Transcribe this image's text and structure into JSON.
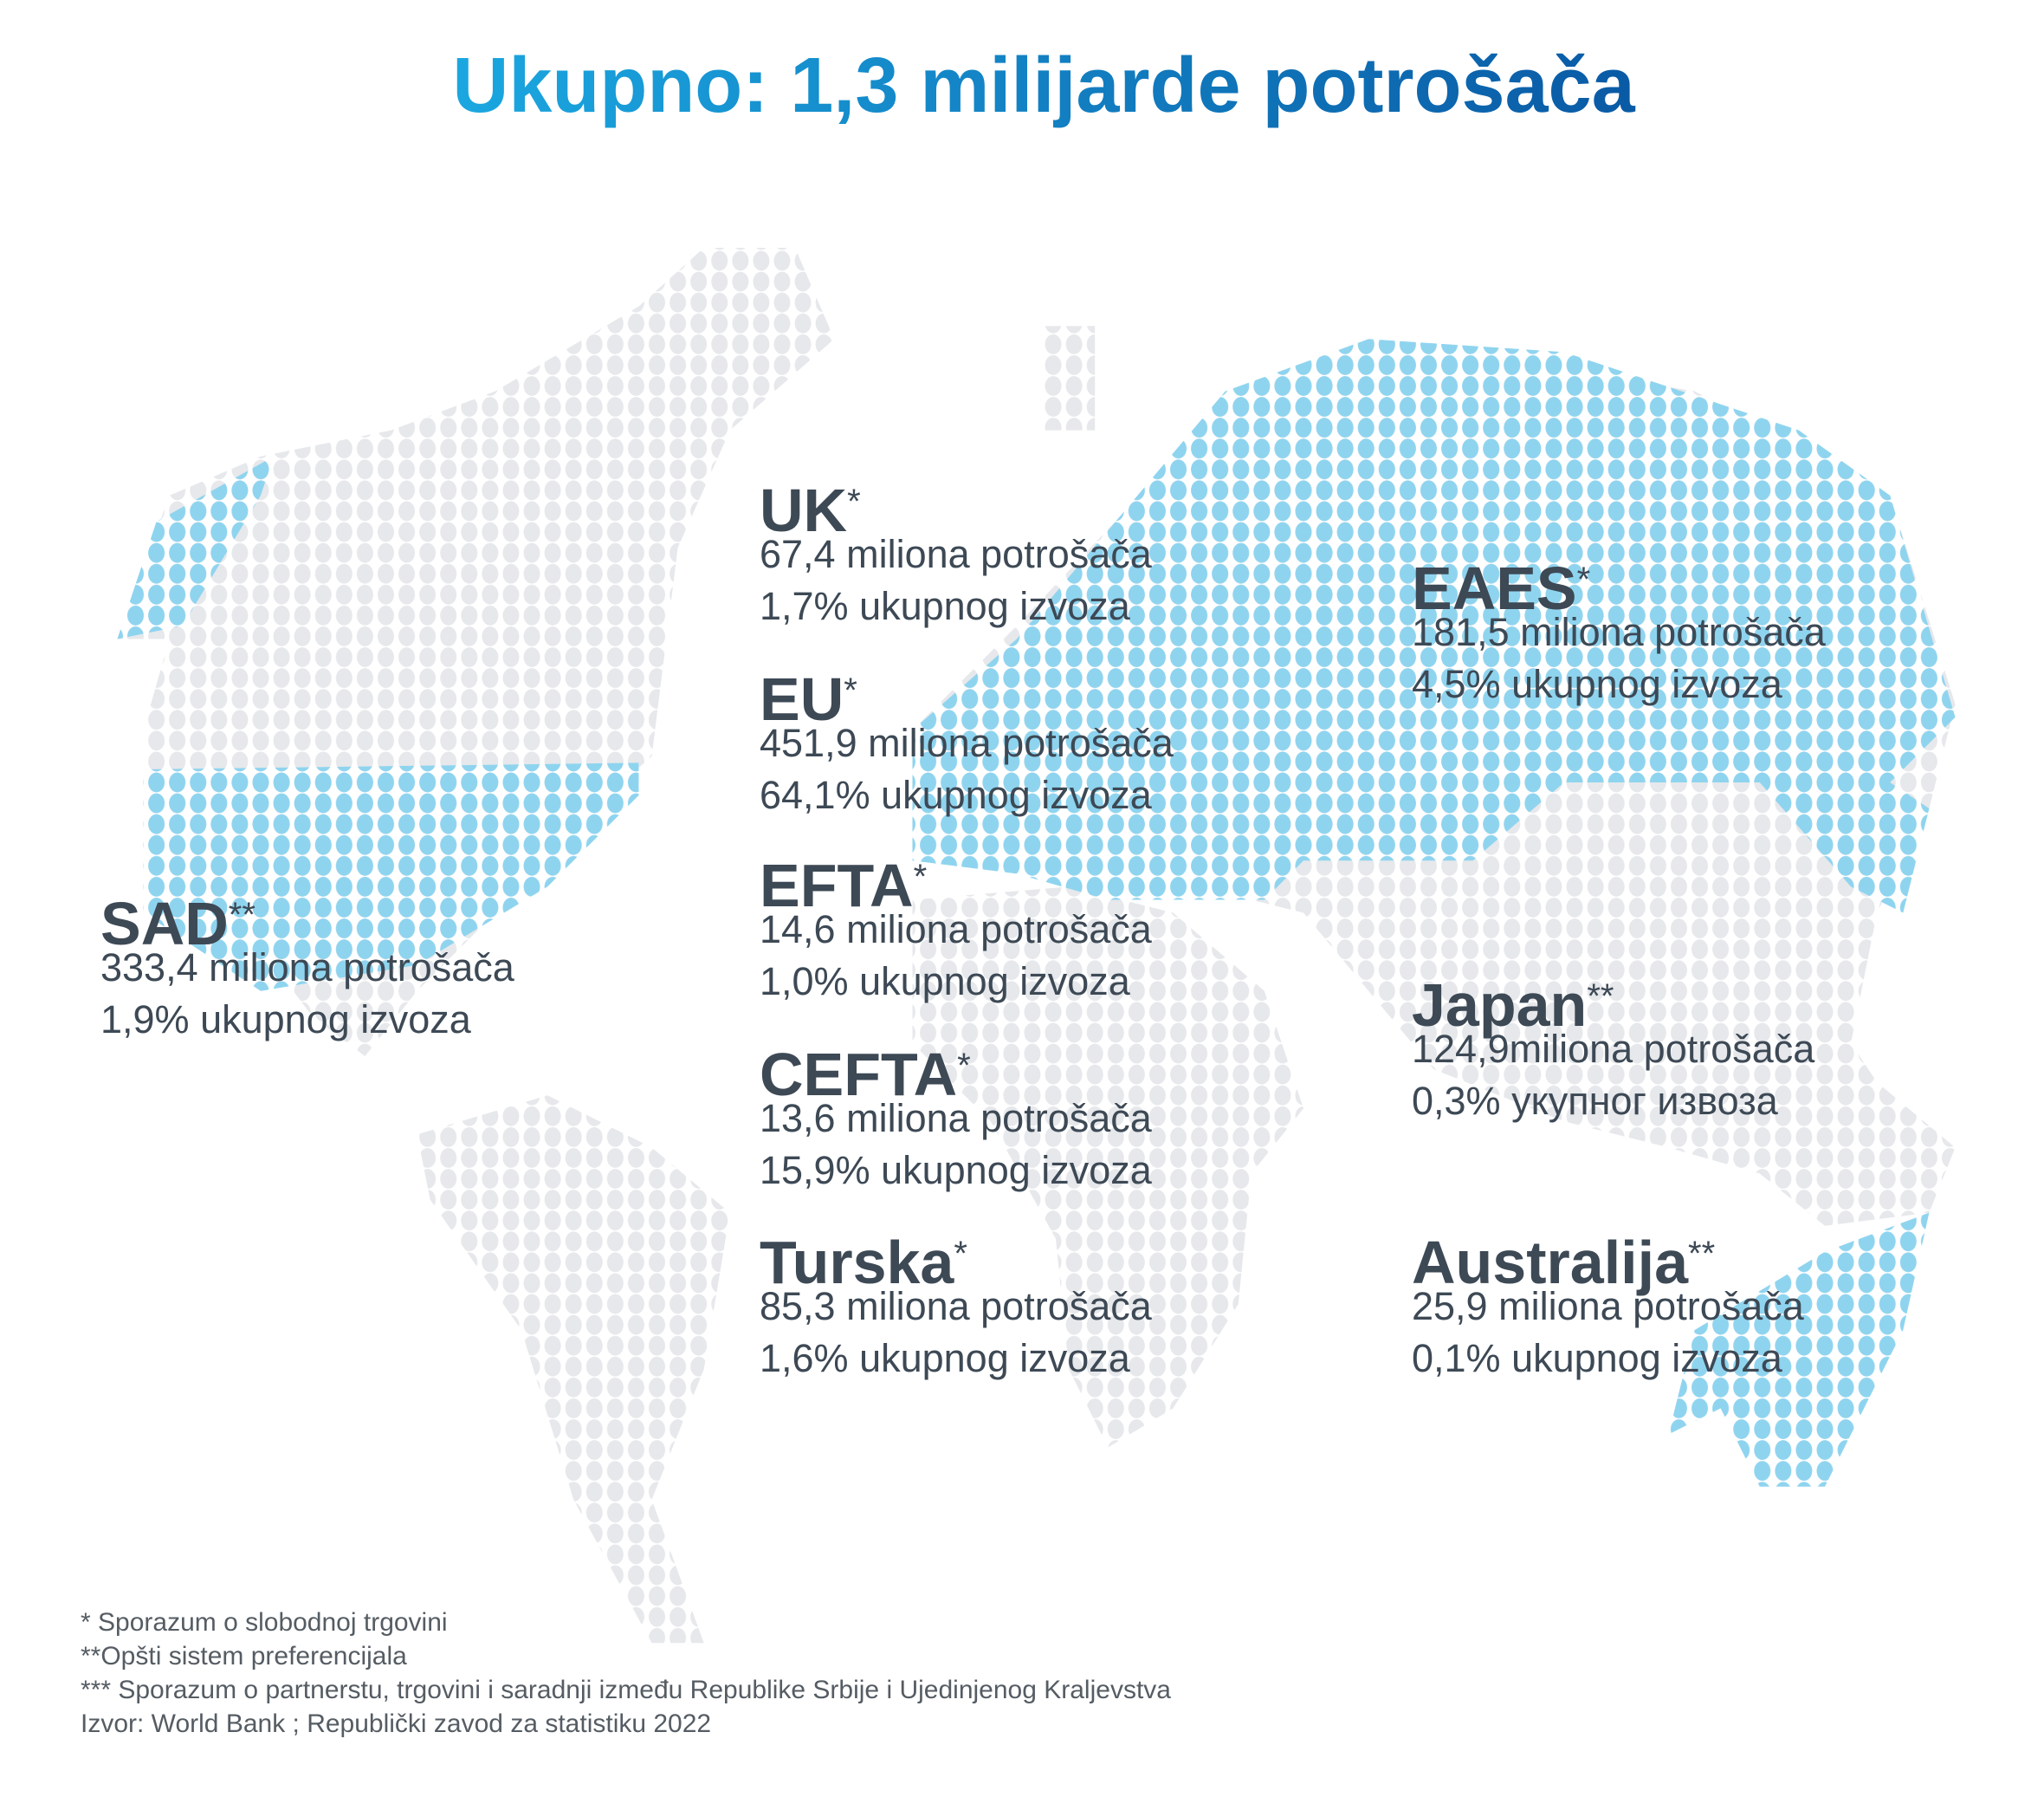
{
  "title": "Ukupno: 1,3 milijarde potrošača",
  "regions": [
    {
      "name": "UK",
      "mark": "*",
      "consumers": "67,4 miliona potrošača",
      "exports": "1,7% ukupnog izvoza"
    },
    {
      "name": "EU",
      "mark": "*",
      "consumers": "451,9 miliona potrošača",
      "exports": "64,1% ukupnog izvoza"
    },
    {
      "name": "EFTA",
      "mark": "*",
      "consumers": "14,6 miliona potrošača",
      "exports": "1,0% ukupnog izvoza"
    },
    {
      "name": "CEFTA",
      "mark": "*",
      "consumers": "13,6 miliona potrošača",
      "exports": "15,9% ukupnog izvoza"
    },
    {
      "name": "Turska",
      "mark": "*",
      "consumers": "85,3 miliona potrošača",
      "exports": "1,6% ukupnog izvoza"
    },
    {
      "name": "SAD",
      "mark": "**",
      "consumers": "333,4 miliona potrošača",
      "exports": "1,9% ukupnog izvoza"
    },
    {
      "name": "EAES",
      "mark": "*",
      "consumers": "181,5 miliona potrošača",
      "exports": "4,5% ukupnog izvoza"
    },
    {
      "name": "Japan",
      "mark": "**",
      "consumers": "124,9miliona potrošača",
      "exports": "0,3% укупног извоза"
    },
    {
      "name": "Australija",
      "mark": "**",
      "consumers": "25,9 miliona potrošača",
      "exports": "0,1% ukupnog izvoza"
    }
  ],
  "footnotes": [
    "* Sporazum o slobodnoj trgovini",
    "**Opšti sistem preferencijala",
    "*** Sporazum o partnerstu, trgovini i saradnji između Republike Srbije i Ujedinjenog Kraljevstva",
    "Izvor: World Bank ; Republički zavod za statistiku 2022"
  ]
}
